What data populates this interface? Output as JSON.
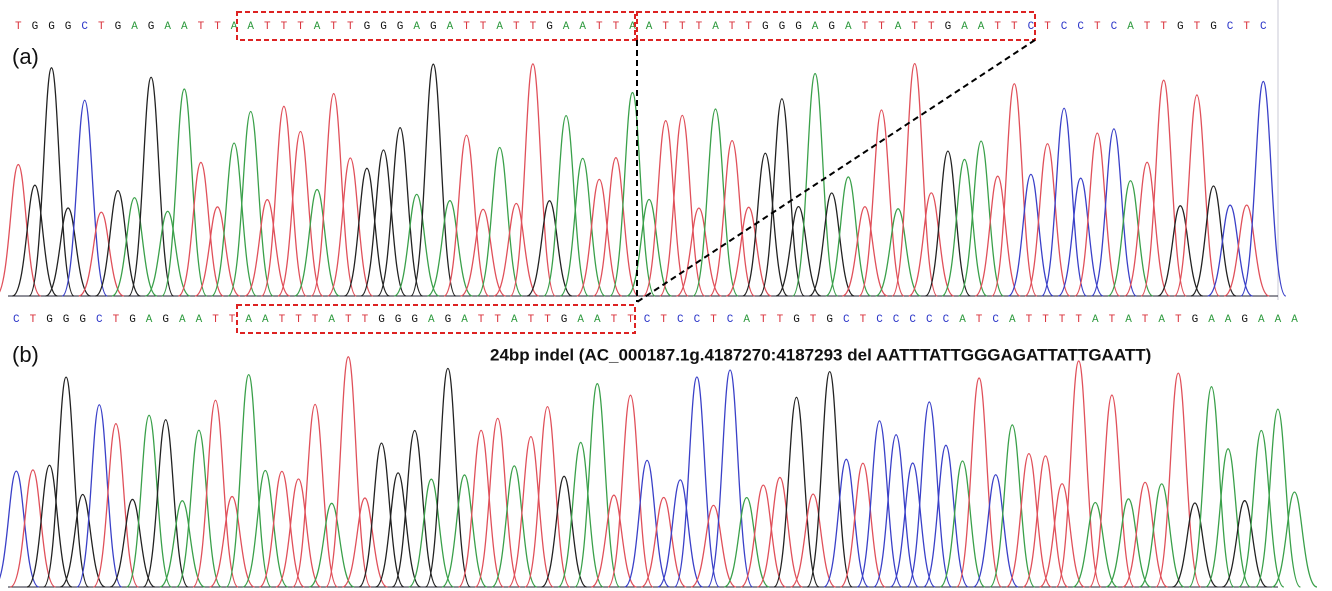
{
  "panel_a": {
    "label": "(a)",
    "sequence": {
      "prefix": "TGGGCTGAGAATT",
      "repeat_1": "AATTTATTGGGAGATTATTGAATT",
      "repeat_2": "AATTTATTGGGAGATTATTGAATT",
      "suffix": "CTCCTCATTGTGCTC"
    }
  },
  "panel_b": {
    "label": "(b)",
    "sequence": {
      "prefix": "CTGGGCTGAGAATT",
      "repeat_1": "AATTTATTGGGAGATTATTGAATT",
      "suffix": "CTCCTCATTGTGCTCCCCCATCATTTTATATATGAAGAAA"
    },
    "annotation": "24bp indel (AC_000187.1g.4187270:4187293 del AATTTATTGGGAGATTATTGAATT)"
  }
}
